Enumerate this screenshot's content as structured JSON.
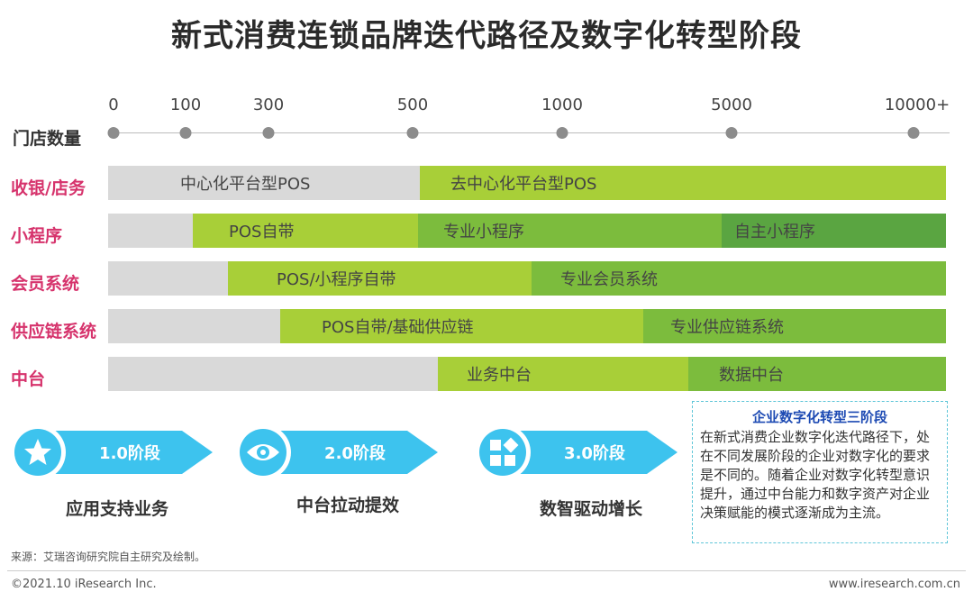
{
  "title": "新式消费连锁品牌迭代路径及数字化转型阶段",
  "axis": {
    "name": "门店数量",
    "ticks": [
      "0",
      "100",
      "300",
      "500",
      "1000",
      "5000",
      "10000+"
    ]
  },
  "rows": [
    {
      "label": "收银/店务",
      "segments": [
        {
          "text": "中心化平台型POS",
          "color": "#d9d9d9"
        },
        {
          "text": "去中心化平台型POS",
          "color": "#a8cf38"
        }
      ]
    },
    {
      "label": "小程序",
      "segments": [
        {
          "text": "",
          "color": "#d9d9d9"
        },
        {
          "text": "POS自带",
          "color": "#a8cf38"
        },
        {
          "text": "专业小程序",
          "color": "#7cbc3d"
        },
        {
          "text": "自主小程序",
          "color": "#5aa541"
        }
      ]
    },
    {
      "label": "会员系统",
      "segments": [
        {
          "text": "",
          "color": "#d9d9d9"
        },
        {
          "text": "POS/小程序自带",
          "color": "#a8cf38"
        },
        {
          "text": "专业会员系统",
          "color": "#7cbc3d"
        }
      ]
    },
    {
      "label": "供应链系统",
      "segments": [
        {
          "text": "",
          "color": "#d9d9d9"
        },
        {
          "text": "POS自带/基础供应链",
          "color": "#a8cf38"
        },
        {
          "text": "专业供应链系统",
          "color": "#7cbc3d"
        }
      ]
    },
    {
      "label": "中台",
      "segments": [
        {
          "text": "",
          "color": "#d9d9d9"
        },
        {
          "text": "业务中台",
          "color": "#a8cf38"
        },
        {
          "text": "数据中台",
          "color": "#7cbc3d"
        }
      ]
    }
  ],
  "stages": [
    {
      "badge": "1.0阶段",
      "text": "应用支持业务",
      "icon": "star-icon"
    },
    {
      "badge": "2.0阶段",
      "text": "中台拉动提效",
      "icon": "eye-icon"
    },
    {
      "badge": "3.0阶段",
      "text": "数智驱动增长",
      "icon": "blocks-icon"
    }
  ],
  "infobox": {
    "title": "企业数字化转型三阶段",
    "body": "在新式消费企业数字化迭代路径下，处在不同发展阶段的企业对数字化的要求是不同的。随着企业对数字化转型意识提升，通过中台能力和数字资产对企业决策赋能的模式逐渐成为主流。"
  },
  "source": "来源：艾瑞咨询研究院自主研究及绘制。",
  "copyright": "©2021.10 iResearch Inc.",
  "website": "www.iresearch.com.cn",
  "colors": {
    "accent": "#d6336c",
    "stage_blue": "#3dc3ee",
    "gray": "#d9d9d9",
    "lime": "#a8cf38",
    "green": "#7cbc3d",
    "dark_green": "#5aa541"
  }
}
